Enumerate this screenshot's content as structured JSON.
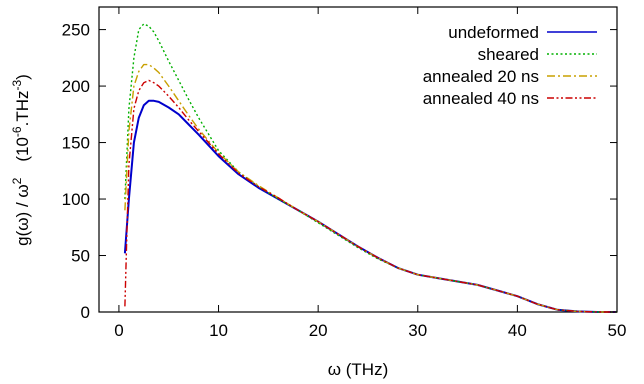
{
  "chart_data": {
    "type": "line",
    "xlabel": "ω (THz)",
    "ylabel": {
      "prefix": "g(ω) / ω",
      "prefix_sup": "2",
      "unit_open": "(10",
      "unit_exp": "-6",
      "unit_mid": ".THz",
      "unit_sup": "-3",
      "unit_close": ")"
    },
    "xlim": [
      -2,
      50
    ],
    "ylim": [
      0,
      270
    ],
    "xticks": [
      0,
      10,
      20,
      30,
      40,
      50
    ],
    "yticks": [
      0,
      50,
      100,
      150,
      200,
      250
    ],
    "grid": false,
    "legend_position": "top-right",
    "series": [
      {
        "name": "undeformed",
        "color": "#0000cc",
        "dash": "solid",
        "points": [
          [
            0.6,
            52
          ],
          [
            1,
            100
          ],
          [
            1.5,
            150
          ],
          [
            2,
            172
          ],
          [
            2.5,
            183
          ],
          [
            3,
            187
          ],
          [
            3.5,
            187
          ],
          [
            4,
            186
          ],
          [
            5,
            181
          ],
          [
            6,
            175
          ],
          [
            7,
            166
          ],
          [
            8,
            157
          ],
          [
            10,
            138
          ],
          [
            12,
            122
          ],
          [
            14,
            110
          ],
          [
            16,
            100
          ],
          [
            18,
            90
          ],
          [
            20,
            80
          ],
          [
            22,
            69
          ],
          [
            24,
            58
          ],
          [
            26,
            48
          ],
          [
            28,
            39
          ],
          [
            30,
            33
          ],
          [
            32,
            30
          ],
          [
            34,
            27
          ],
          [
            36,
            24
          ],
          [
            38,
            19
          ],
          [
            40,
            14
          ],
          [
            42,
            7
          ],
          [
            44,
            2
          ],
          [
            46,
            0.5
          ],
          [
            48,
            0
          ],
          [
            50,
            0
          ]
        ]
      },
      {
        "name": "sheared",
        "color": "#00b000",
        "dash": "dotted",
        "points": [
          [
            0.6,
            100
          ],
          [
            1,
            180
          ],
          [
            1.5,
            225
          ],
          [
            2,
            250
          ],
          [
            2.5,
            255
          ],
          [
            3,
            253
          ],
          [
            3.5,
            248
          ],
          [
            4,
            240
          ],
          [
            5,
            222
          ],
          [
            6,
            205
          ],
          [
            7,
            188
          ],
          [
            8,
            172
          ],
          [
            10,
            143
          ],
          [
            12,
            124
          ],
          [
            14,
            111
          ],
          [
            16,
            100
          ],
          [
            18,
            90
          ],
          [
            20,
            79
          ],
          [
            22,
            68
          ],
          [
            24,
            57
          ],
          [
            26,
            47
          ],
          [
            28,
            39
          ],
          [
            30,
            33
          ],
          [
            32,
            30
          ],
          [
            34,
            27
          ],
          [
            36,
            24
          ],
          [
            38,
            19
          ],
          [
            40,
            14
          ],
          [
            42,
            7
          ],
          [
            44,
            2
          ],
          [
            46,
            0.5
          ],
          [
            48,
            0
          ],
          [
            50,
            0
          ]
        ]
      },
      {
        "name": "annealed 20 ns",
        "color": "#c8a000",
        "dash": "dashdot",
        "points": [
          [
            0.6,
            90
          ],
          [
            1,
            160
          ],
          [
            1.5,
            200
          ],
          [
            2,
            213
          ],
          [
            2.5,
            219
          ],
          [
            3,
            219
          ],
          [
            3.5,
            216
          ],
          [
            4,
            212
          ],
          [
            5,
            200
          ],
          [
            6,
            187
          ],
          [
            7,
            174
          ],
          [
            8,
            162
          ],
          [
            10,
            141
          ],
          [
            12,
            124
          ],
          [
            14,
            112
          ],
          [
            16,
            101
          ],
          [
            18,
            90
          ],
          [
            20,
            80
          ],
          [
            22,
            69
          ],
          [
            24,
            58
          ],
          [
            26,
            48
          ],
          [
            28,
            39
          ],
          [
            30,
            33
          ],
          [
            32,
            30
          ],
          [
            34,
            27
          ],
          [
            36,
            24
          ],
          [
            38,
            19
          ],
          [
            40,
            14
          ],
          [
            42,
            7
          ],
          [
            44,
            2
          ],
          [
            46,
            0.5
          ],
          [
            48,
            0
          ],
          [
            50,
            0
          ]
        ]
      },
      {
        "name": "annealed 40 ns",
        "color": "#cc0000",
        "dash": "dashdotdot",
        "points": [
          [
            0.6,
            5
          ],
          [
            0.8,
            70
          ],
          [
            1,
            130
          ],
          [
            1.5,
            180
          ],
          [
            2,
            196
          ],
          [
            2.5,
            203
          ],
          [
            3,
            205
          ],
          [
            3.5,
            203
          ],
          [
            4,
            200
          ],
          [
            5,
            191
          ],
          [
            6,
            181
          ],
          [
            7,
            170
          ],
          [
            8,
            160
          ],
          [
            10,
            140
          ],
          [
            12,
            123
          ],
          [
            14,
            111
          ],
          [
            16,
            101
          ],
          [
            18,
            90
          ],
          [
            20,
            80
          ],
          [
            22,
            69
          ],
          [
            24,
            58
          ],
          [
            26,
            48
          ],
          [
            28,
            39
          ],
          [
            30,
            33
          ],
          [
            32,
            30
          ],
          [
            34,
            27
          ],
          [
            36,
            24
          ],
          [
            38,
            19
          ],
          [
            40,
            14
          ],
          [
            42,
            7
          ],
          [
            44,
            2
          ],
          [
            46,
            0.5
          ],
          [
            48,
            0
          ],
          [
            50,
            0
          ]
        ]
      }
    ]
  }
}
